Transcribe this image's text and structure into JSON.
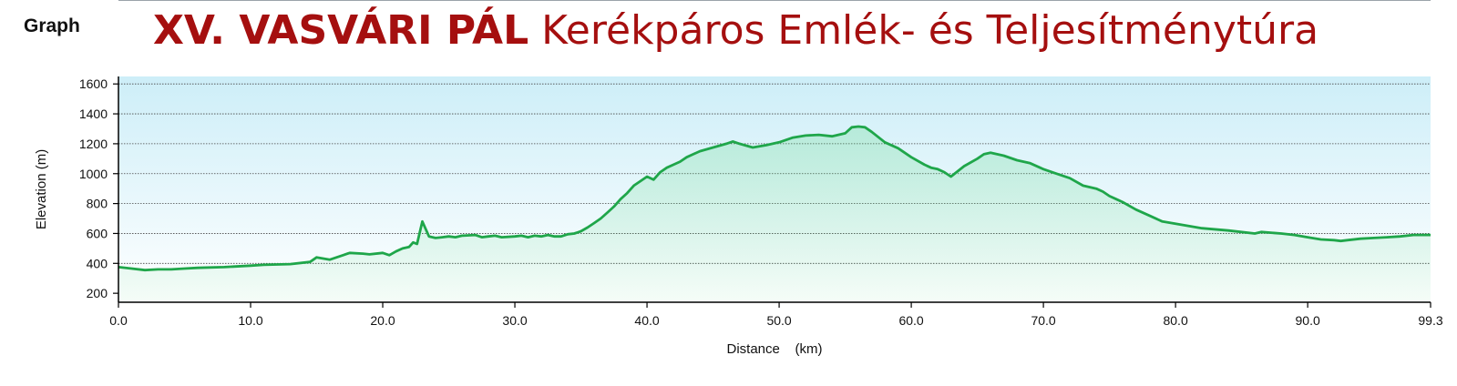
{
  "header": {
    "graph_label": "Graph",
    "title_bold": "XV. VASVÁRI PÁL",
    "title_rest": "Kerékpáros Emlék- és Teljesítménytúra"
  },
  "colors": {
    "title": "#a50f0f",
    "line": "#1fa64a",
    "fill": "#3fcf6a",
    "sky_top": "#cdeef8",
    "sky_bottom": "#ffffff",
    "grid": "#444444"
  },
  "chart_data": {
    "type": "area",
    "title": "XV. VASVÁRI PÁL Kerékpáros Emlék- és Teljesítménytúra",
    "xlabel": "Distance (km)",
    "ylabel": "Elevation (m)",
    "xlim": [
      0,
      99.3
    ],
    "ylim": [
      140,
      1650
    ],
    "x_ticks": [
      0,
      10,
      20,
      30,
      40,
      50,
      60,
      70,
      80,
      90,
      99.3
    ],
    "x_tick_labels": [
      "0.0",
      "10.0",
      "20.0",
      "30.0",
      "40.0",
      "50.0",
      "60.0",
      "70.0",
      "80.0",
      "90.0",
      "99.3"
    ],
    "y_ticks": [
      200,
      400,
      600,
      800,
      1000,
      1200,
      1400,
      1600
    ],
    "y_tick_labels": [
      "200",
      "400",
      "600",
      "800",
      "1000",
      "1200",
      "1400",
      "1600"
    ],
    "grid": true,
    "series": [
      {
        "x": [
          0,
          1,
          2,
          3,
          4,
          5,
          6,
          8,
          10,
          11,
          13,
          14.5,
          15,
          16,
          17,
          17.5,
          18.5,
          19,
          20,
          20.5,
          21,
          21.5,
          22,
          22.3,
          22.6,
          23,
          23.5,
          24,
          24.5,
          25,
          25.5,
          26,
          27,
          27.5,
          28,
          28.5,
          29,
          30,
          30.5,
          31,
          31.5,
          32,
          32.5,
          33,
          33.5,
          34,
          34.5,
          35,
          35.5,
          36,
          36.5,
          37,
          37.5,
          38,
          38.5,
          39,
          39.5,
          40,
          40.5,
          41,
          41.5,
          42,
          42.5,
          43,
          43.5,
          44,
          45,
          46,
          46.5,
          47,
          48,
          49,
          50,
          51,
          52,
          53,
          54,
          55,
          55.5,
          56,
          56.5,
          57,
          58,
          59,
          60,
          61,
          61.5,
          62,
          62.5,
          63,
          64,
          65,
          65.5,
          66,
          67,
          68,
          69,
          70,
          71,
          72,
          73,
          74,
          74.5,
          75,
          75.5,
          76,
          77,
          78,
          79,
          80,
          82,
          84,
          86,
          86.5,
          88,
          89,
          90,
          91,
          92,
          92.5,
          93,
          94,
          95,
          96,
          97,
          98,
          99.3
        ],
        "y": [
          375,
          365,
          355,
          360,
          360,
          365,
          370,
          375,
          385,
          390,
          395,
          410,
          440,
          425,
          455,
          470,
          465,
          460,
          470,
          455,
          480,
          500,
          510,
          540,
          530,
          680,
          580,
          570,
          575,
          580,
          575,
          585,
          590,
          575,
          580,
          585,
          575,
          580,
          585,
          575,
          585,
          580,
          590,
          580,
          580,
          595,
          600,
          615,
          640,
          670,
          700,
          740,
          780,
          830,
          870,
          920,
          950,
          980,
          960,
          1010,
          1040,
          1060,
          1080,
          1110,
          1130,
          1150,
          1175,
          1200,
          1215,
          1200,
          1175,
          1190,
          1210,
          1240,
          1255,
          1260,
          1250,
          1270,
          1310,
          1315,
          1310,
          1280,
          1210,
          1170,
          1110,
          1060,
          1040,
          1030,
          1010,
          980,
          1050,
          1100,
          1130,
          1140,
          1120,
          1090,
          1070,
          1030,
          1000,
          970,
          920,
          900,
          880,
          850,
          830,
          810,
          760,
          720,
          680,
          665,
          635,
          620,
          600,
          610,
          600,
          590,
          575,
          560,
          555,
          550,
          555,
          565,
          570,
          575,
          580,
          590,
          590
        ]
      }
    ]
  }
}
